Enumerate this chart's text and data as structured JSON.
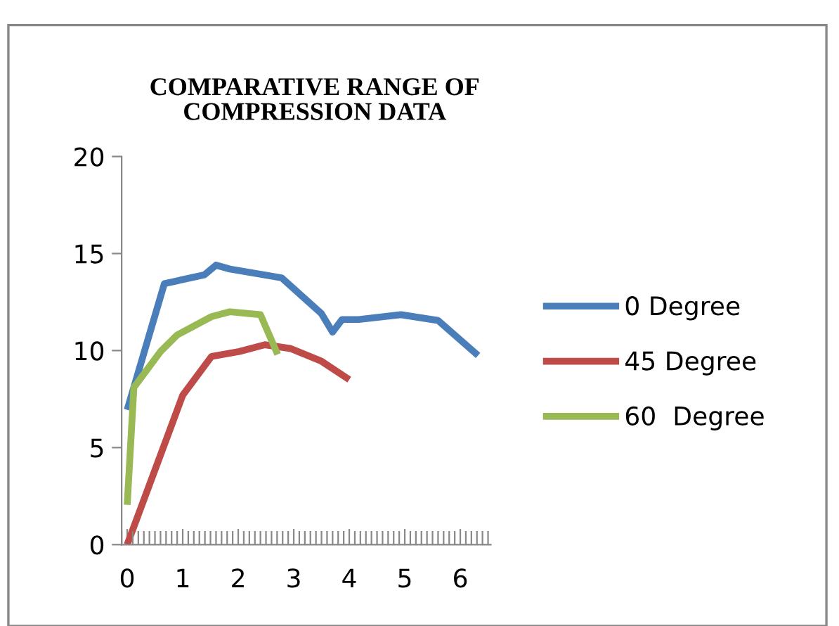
{
  "chart_data": {
    "type": "line",
    "title": "COMPARATIVE RANGE OF\nCOMPRESSION DATA",
    "xlim": [
      -0.1,
      6.55
    ],
    "xticks": [
      0,
      1,
      2,
      3,
      4,
      5,
      6
    ],
    "ylim": [
      0,
      20
    ],
    "yticks": [
      0,
      5,
      10,
      15,
      20
    ],
    "grid": false,
    "legend": "right",
    "marker": "none",
    "line_style": "solid",
    "series": [
      {
        "name": "0 Degree",
        "color": "#4a7ebb",
        "x": [
          0,
          0.67,
          1.39,
          1.6,
          1.85,
          2.78,
          3.5,
          3.7,
          3.87,
          4.17,
          4.93,
          5.6,
          6.32
        ],
        "values": [
          6.95,
          13.45,
          13.9,
          14.4,
          14.2,
          13.75,
          11.9,
          10.95,
          11.6,
          11.6,
          11.85,
          11.55,
          9.75
        ]
      },
      {
        "name": "45 Degree",
        "color": "#be4b48",
        "x": [
          0,
          1,
          1.52,
          2.02,
          2.48,
          2.95,
          3.5,
          4.0
        ],
        "values": [
          0,
          7.7,
          9.7,
          9.95,
          10.3,
          10.1,
          9.45,
          8.5
        ]
      },
      {
        "name": "60  Degree",
        "color": "#98b954",
        "x": [
          0,
          0.12,
          0.6,
          0.9,
          1.52,
          1.85,
          2.4,
          2.71
        ],
        "values": [
          2.05,
          8.1,
          9.95,
          10.8,
          11.75,
          12.0,
          11.85,
          9.8
        ]
      }
    ]
  }
}
